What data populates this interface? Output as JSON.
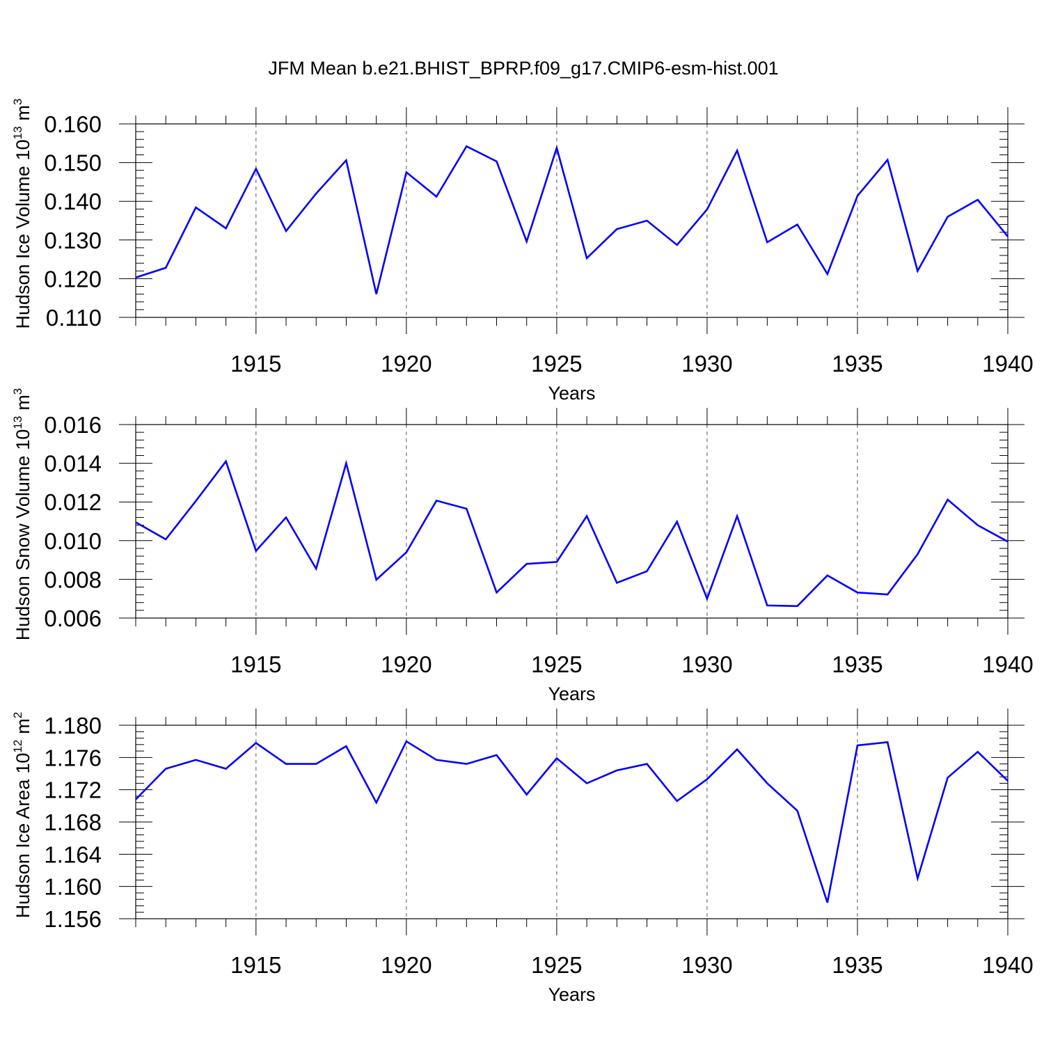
{
  "figure_title": "JFM Mean b.e21.BHIST_BPRP.f09_g17.CMIP6-esm-hist.001",
  "colors": {
    "line": "#0000ff",
    "axis": "#000000",
    "grid": "#555555",
    "background": "#ffffff"
  },
  "chart_data": [
    {
      "type": "line",
      "id": "ice-volume",
      "title": "",
      "xlabel": "Years",
      "ylabel": "Hudson Ice Volume",
      "ylabel_unit": {
        "base": "10",
        "exp": "13",
        "unit": "m",
        "unit_exp": "3"
      },
      "xlim": [
        1911,
        1940
      ],
      "ylim": [
        0.11,
        0.16
      ],
      "yticks": [
        "0.110",
        "0.120",
        "0.130",
        "0.140",
        "0.150",
        "0.160"
      ],
      "ytick_values": [
        0.11,
        0.12,
        0.13,
        0.14,
        0.15,
        0.16
      ],
      "xticks": [
        "1915",
        "1920",
        "1925",
        "1930",
        "1935",
        "1940"
      ],
      "xtick_values": [
        1915,
        1920,
        1925,
        1930,
        1935,
        1940
      ],
      "grid_x": true,
      "x": [
        1911,
        1912,
        1913,
        1914,
        1915,
        1916,
        1917,
        1918,
        1919,
        1920,
        1921,
        1922,
        1923,
        1924,
        1925,
        1926,
        1927,
        1928,
        1929,
        1930,
        1931,
        1932,
        1933,
        1934,
        1935,
        1936,
        1937,
        1938,
        1939,
        1940
      ],
      "series": [
        {
          "name": "Hudson Ice Volume",
          "values": [
            0.1203,
            0.1228,
            0.1384,
            0.133,
            0.1484,
            0.1323,
            0.142,
            0.1506,
            0.116,
            0.1475,
            0.1412,
            0.1542,
            0.1503,
            0.1296,
            0.1538,
            0.1253,
            0.1328,
            0.135,
            0.1287,
            0.1379,
            0.1531,
            0.1294,
            0.134,
            0.1212,
            0.1414,
            0.1507,
            0.122,
            0.136,
            0.1404,
            0.1309
          ]
        }
      ]
    },
    {
      "type": "line",
      "id": "snow-volume",
      "title": "",
      "xlabel": "Years",
      "ylabel": "Hudson Snow Volume",
      "ylabel_unit": {
        "base": "10",
        "exp": "13",
        "unit": "m",
        "unit_exp": "3"
      },
      "xlim": [
        1911,
        1940
      ],
      "ylim": [
        0.006,
        0.016
      ],
      "yticks": [
        "0.006",
        "0.008",
        "0.010",
        "0.012",
        "0.014",
        "0.016"
      ],
      "ytick_values": [
        0.006,
        0.008,
        0.01,
        0.012,
        0.014,
        0.016
      ],
      "xticks": [
        "1915",
        "1920",
        "1925",
        "1930",
        "1935",
        "1940"
      ],
      "xtick_values": [
        1915,
        1920,
        1925,
        1930,
        1935,
        1940
      ],
      "grid_x": true,
      "x": [
        1911,
        1912,
        1913,
        1914,
        1915,
        1916,
        1917,
        1918,
        1919,
        1920,
        1921,
        1922,
        1923,
        1924,
        1925,
        1926,
        1927,
        1928,
        1929,
        1930,
        1931,
        1932,
        1933,
        1934,
        1935,
        1936,
        1937,
        1938,
        1939,
        1940
      ],
      "series": [
        {
          "name": "Hudson Snow Volume",
          "values": [
            0.01095,
            0.01007,
            0.01205,
            0.0141,
            0.00947,
            0.0112,
            0.00855,
            0.014,
            0.00798,
            0.0094,
            0.01207,
            0.01165,
            0.00732,
            0.0088,
            0.0089,
            0.01127,
            0.00782,
            0.00842,
            0.01098,
            0.007,
            0.01127,
            0.00665,
            0.00662,
            0.0082,
            0.00732,
            0.00722,
            0.0093,
            0.01212,
            0.0108,
            0.00995
          ]
        }
      ]
    },
    {
      "type": "line",
      "id": "ice-area",
      "title": "",
      "xlabel": "Years",
      "ylabel": "Hudson Ice Area",
      "ylabel_unit": {
        "base": "10",
        "exp": "12",
        "unit": "m",
        "unit_exp": "2"
      },
      "xlim": [
        1911,
        1940
      ],
      "ylim": [
        1.156,
        1.18
      ],
      "yticks": [
        "1.156",
        "1.160",
        "1.164",
        "1.168",
        "1.172",
        "1.176",
        "1.180"
      ],
      "ytick_values": [
        1.156,
        1.16,
        1.164,
        1.168,
        1.172,
        1.176,
        1.18
      ],
      "xticks": [
        "1915",
        "1920",
        "1925",
        "1930",
        "1935",
        "1940"
      ],
      "xtick_values": [
        1915,
        1920,
        1925,
        1930,
        1935,
        1940
      ],
      "grid_x": true,
      "x": [
        1911,
        1912,
        1913,
        1914,
        1915,
        1916,
        1917,
        1918,
        1919,
        1920,
        1921,
        1922,
        1923,
        1924,
        1925,
        1926,
        1927,
        1928,
        1929,
        1930,
        1931,
        1932,
        1933,
        1934,
        1935,
        1936,
        1937,
        1938,
        1939,
        1940
      ],
      "series": [
        {
          "name": "Hudson Ice Area",
          "values": [
            1.1708,
            1.1746,
            1.1757,
            1.1746,
            1.1778,
            1.1752,
            1.1752,
            1.1774,
            1.1704,
            1.178,
            1.1757,
            1.1752,
            1.1763,
            1.1714,
            1.1759,
            1.1728,
            1.1744,
            1.1752,
            1.1706,
            1.1733,
            1.177,
            1.1728,
            1.1694,
            1.158,
            1.1775,
            1.1779,
            1.161,
            1.1735,
            1.1767,
            1.1731
          ]
        }
      ]
    }
  ]
}
